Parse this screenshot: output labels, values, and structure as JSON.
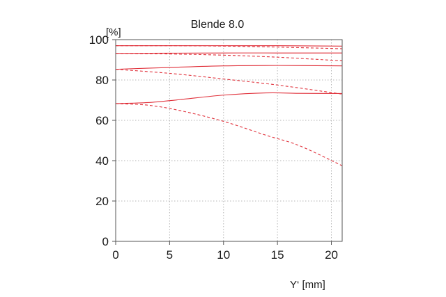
{
  "chart_data": {
    "type": "line",
    "title": "Blende 8.0",
    "xlabel": "Y‘ [mm]",
    "ylabel": "[%]",
    "xlim": [
      0,
      21
    ],
    "ylim": [
      0,
      100
    ],
    "xticks": [
      "0",
      "5",
      "10",
      "15",
      "20"
    ],
    "yticks": [
      "0",
      "20",
      "40",
      "60",
      "80",
      "100"
    ],
    "grid": true,
    "colors": {
      "series": "#e0303a",
      "grid": "#b5b5b5",
      "frame": "#555555"
    },
    "series": [
      {
        "style": "solid",
        "x": [
          0,
          5,
          10,
          15,
          21
        ],
        "y": [
          97,
          97,
          97,
          97,
          96.8
        ]
      },
      {
        "style": "dashed",
        "x": [
          0,
          5,
          10,
          15,
          21
        ],
        "y": [
          97,
          97,
          96.8,
          96.3,
          95.5
        ]
      },
      {
        "style": "solid",
        "x": [
          0,
          5,
          10,
          15,
          21
        ],
        "y": [
          93.2,
          93.3,
          93.4,
          93.4,
          93.4
        ]
      },
      {
        "style": "dashed",
        "x": [
          0,
          5,
          10,
          15,
          21
        ],
        "y": [
          93.2,
          92.9,
          92.3,
          91.3,
          89.5
        ]
      },
      {
        "style": "solid",
        "x": [
          0,
          5,
          10,
          15,
          21
        ],
        "y": [
          85.3,
          86.2,
          87.0,
          87.2,
          87.0
        ]
      },
      {
        "style": "dashed",
        "x": [
          0,
          5,
          10,
          15,
          21
        ],
        "y": [
          85.3,
          83.3,
          80.5,
          77.5,
          73.0
        ]
      },
      {
        "style": "solid",
        "x": [
          0,
          3,
          6,
          10,
          14,
          17,
          21
        ],
        "y": [
          68.3,
          68.8,
          70.3,
          72.5,
          73.6,
          73.4,
          73.3
        ]
      },
      {
        "style": "dashed",
        "x": [
          0,
          3,
          6,
          10,
          14,
          17,
          21
        ],
        "y": [
          68.3,
          67.5,
          64.8,
          59.5,
          52.5,
          47.5,
          37.5
        ]
      }
    ]
  }
}
